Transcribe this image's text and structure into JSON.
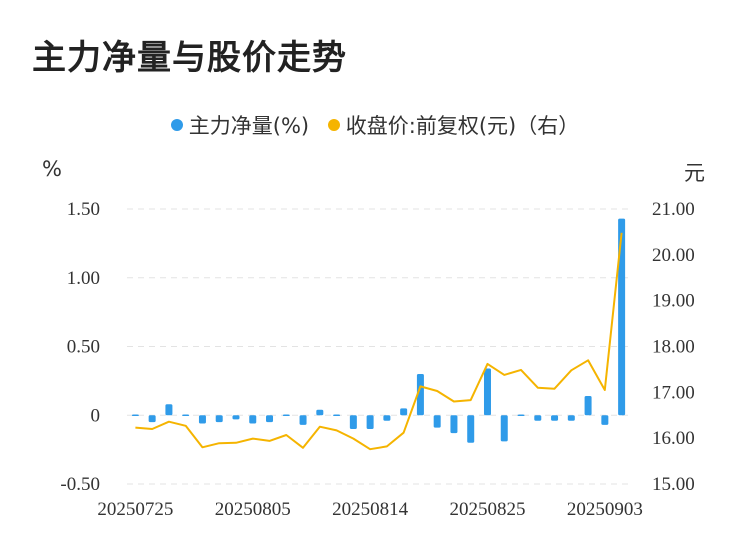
{
  "colors": {
    "bar": "#2f9be9",
    "line": "#f5b400",
    "grid": "#e3e3e3",
    "text": "#333333"
  },
  "chart_data": {
    "type": "bar+line",
    "title": "主力净量与股价走势",
    "left_unit": "%",
    "right_unit": "元",
    "legend": [
      "主力净量(%)",
      "收盘价:前复权(元)（右）"
    ],
    "legend_placement": "top-center",
    "grid": true,
    "x_tick_labels": [
      "20250725",
      "20250805",
      "20250814",
      "20250825",
      "20250903"
    ],
    "x_tick_indices": [
      0,
      7,
      14,
      21,
      28
    ],
    "y_left": {
      "ticks": [
        1.5,
        1.0,
        0.5,
        0,
        -0.5
      ],
      "tick_labels": [
        "1.50",
        "1.00",
        "0.50",
        "0",
        "-0.50"
      ],
      "ylim": [
        -0.5,
        1.5
      ]
    },
    "y_right": {
      "ticks": [
        21,
        20,
        19,
        18,
        17,
        16,
        15
      ],
      "tick_labels": [
        "21.00",
        "20.00",
        "19.00",
        "18.00",
        "17.00",
        "16.00",
        "15.00"
      ],
      "ylim": [
        15,
        21
      ]
    },
    "series": [
      {
        "name": "主力净量(%)",
        "type": "bar",
        "axis": "left",
        "values": [
          0.0,
          -0.05,
          0.08,
          0.01,
          -0.06,
          -0.05,
          -0.03,
          -0.06,
          -0.05,
          0.0,
          -0.07,
          0.04,
          0.0,
          -0.1,
          -0.1,
          -0.04,
          0.05,
          0.3,
          -0.09,
          -0.13,
          -0.2,
          0.34,
          -0.19,
          0.0,
          -0.04,
          -0.04,
          -0.04,
          0.14,
          -0.07,
          1.43
        ]
      },
      {
        "name": "收盘价:前复权(元)（右）",
        "type": "line",
        "axis": "right",
        "values": [
          16.23,
          16.2,
          16.36,
          16.27,
          15.8,
          15.89,
          15.9,
          15.99,
          15.94,
          16.07,
          15.79,
          16.25,
          16.17,
          15.99,
          15.76,
          15.82,
          16.12,
          17.13,
          17.03,
          16.8,
          16.83,
          17.62,
          17.38,
          17.49,
          17.1,
          17.08,
          17.48,
          17.7,
          17.05,
          20.48
        ]
      }
    ]
  }
}
